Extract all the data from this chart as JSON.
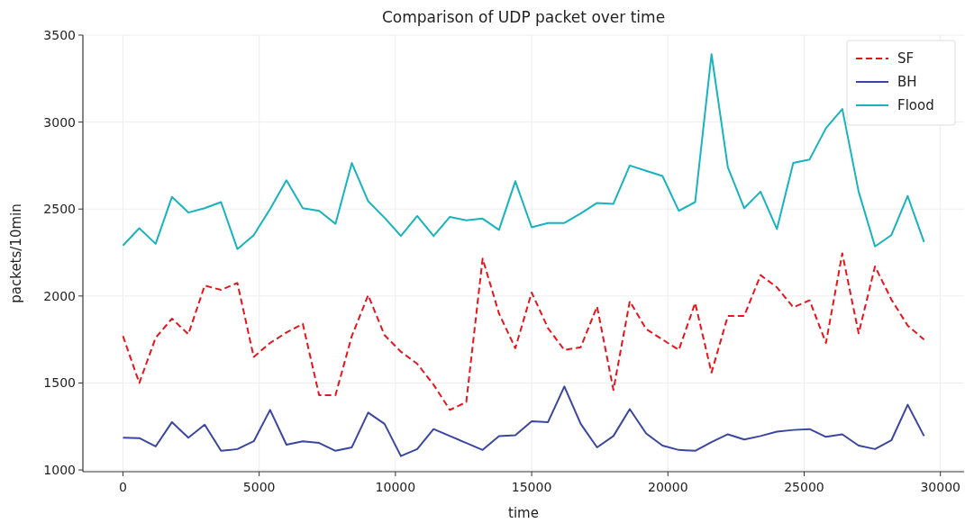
{
  "chart_data": {
    "type": "line",
    "title": "Comparison of UDP packet over time",
    "xlabel": "time",
    "ylabel": "packets/10min",
    "x": [
      0,
      600,
      1200,
      1800,
      2400,
      3000,
      3600,
      4200,
      4800,
      5400,
      6000,
      6600,
      7200,
      7800,
      8400,
      9000,
      9600,
      10200,
      10800,
      11400,
      12000,
      12600,
      13200,
      13800,
      14400,
      15000,
      15600,
      16200,
      16800,
      17400,
      18000,
      18600,
      19200,
      19800,
      20400,
      21000,
      21600,
      22200,
      22800,
      23400,
      24000,
      24600,
      25200,
      25800,
      26400,
      27000,
      27600,
      28200,
      28800,
      29400
    ],
    "series": [
      {
        "name": "SF",
        "color": "#e8141c",
        "line_style": "dashed",
        "values": [
          1770,
          1500,
          1760,
          1870,
          1780,
          2060,
          2035,
          2075,
          1650,
          1730,
          1790,
          1840,
          1430,
          1430,
          1770,
          2005,
          1775,
          1680,
          1610,
          1490,
          1345,
          1390,
          2215,
          1900,
          1700,
          2020,
          1815,
          1690,
          1705,
          1940,
          1460,
          1970,
          1810,
          1750,
          1690,
          1960,
          1560,
          1885,
          1885,
          2120,
          2050,
          1935,
          1975,
          1730,
          2245,
          1785,
          2170,
          1980,
          1830,
          1750
        ]
      },
      {
        "name": "BH",
        "color": "#3a46a0",
        "line_style": "solid",
        "values": [
          1185,
          1183,
          1135,
          1275,
          1185,
          1260,
          1110,
          1120,
          1165,
          1345,
          1145,
          1165,
          1155,
          1110,
          1130,
          1330,
          1265,
          1080,
          1120,
          1235,
          1195,
          1155,
          1115,
          1195,
          1200,
          1280,
          1275,
          1480,
          1265,
          1130,
          1195,
          1350,
          1210,
          1140,
          1115,
          1110,
          1160,
          1205,
          1175,
          1195,
          1220,
          1230,
          1235,
          1190,
          1205,
          1140,
          1120,
          1170,
          1375,
          1195
        ]
      },
      {
        "name": "Flood",
        "color": "#17b3bf",
        "line_style": "solid",
        "values": [
          2290,
          2390,
          2300,
          2570,
          2480,
          2505,
          2540,
          2270,
          2350,
          2500,
          2665,
          2505,
          2490,
          2415,
          2765,
          2545,
          2450,
          2345,
          2460,
          2345,
          2455,
          2435,
          2445,
          2380,
          2660,
          2395,
          2420,
          2420,
          2475,
          2535,
          2530,
          2750,
          2720,
          2690,
          2490,
          2540,
          3390,
          2740,
          2505,
          2600,
          2385,
          2765,
          2785,
          2965,
          3075,
          2600,
          2285,
          2350,
          2575,
          2310
        ]
      }
    ],
    "xlim": [
      -1470,
      30870
    ],
    "xticks": [
      0,
      5000,
      10000,
      15000,
      20000,
      25000,
      30000
    ],
    "ylim": [
      990,
      3500
    ],
    "yticks": [
      1000,
      1500,
      2000,
      2500,
      3000,
      3500
    ],
    "grid": true,
    "legend": "top right",
    "marker": "none"
  }
}
